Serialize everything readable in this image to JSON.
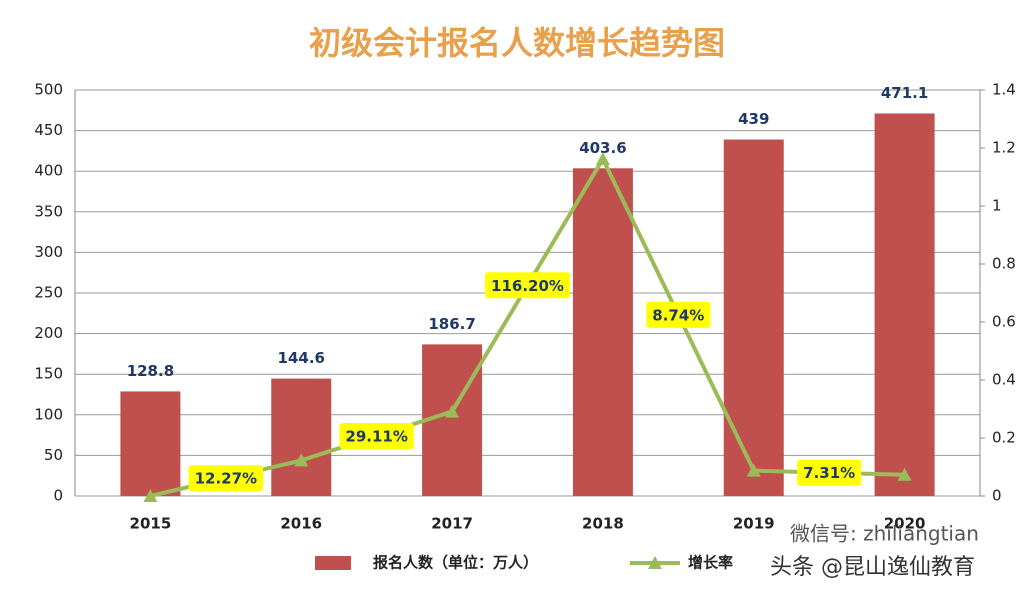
{
  "chart_data": {
    "type": "bar-line",
    "title": "初级会计报名人数增长趋势图",
    "categories": [
      "2015",
      "2016",
      "2017",
      "2018",
      "2019",
      "2020"
    ],
    "series": [
      {
        "name": "报名人数（单位：万人）",
        "type": "bar",
        "color": "#c0504d",
        "values": [
          128.8,
          144.6,
          186.7,
          403.6,
          439,
          471.1
        ]
      },
      {
        "name": "增长率",
        "type": "line",
        "axis": "y2",
        "color": "#9bbb59",
        "values": [
          0,
          0.1227,
          0.2911,
          1.162,
          0.0874,
          0.0731
        ],
        "value_labels": [
          null,
          "12.27%",
          "29.11%",
          "116.20%",
          "8.74%",
          "7.31%"
        ]
      }
    ],
    "ylim": [
      0,
      500
    ],
    "yticks": [
      0,
      50,
      100,
      150,
      200,
      250,
      300,
      350,
      400,
      450,
      500
    ],
    "y2lim": [
      0,
      1.4
    ],
    "y2ticks": [
      0,
      0.2,
      0.4,
      0.6,
      0.8,
      1,
      1.2,
      1.4
    ],
    "grid": true,
    "legend": "bottom",
    "watermark": [
      "微信号: zhiliangtian",
      "头条 @昆山逸仙教育"
    ]
  }
}
